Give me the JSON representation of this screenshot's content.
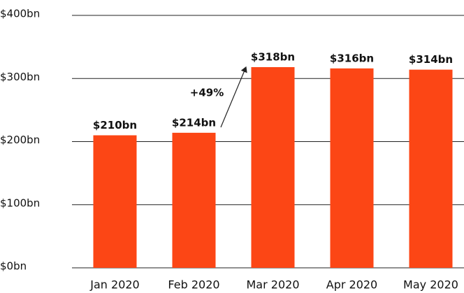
{
  "chart_data": {
    "type": "bar",
    "categories": [
      "Jan 2020",
      "Feb 2020",
      "Mar 2020",
      "Apr 2020",
      "May 2020"
    ],
    "values": [
      210,
      214,
      318,
      316,
      314
    ],
    "value_labels": [
      "$210bn",
      "$214bn",
      "$318bn",
      "$316bn",
      "$314bn"
    ],
    "color": "#fc4615",
    "ylim": [
      0,
      400
    ],
    "yticks": [
      {
        "value": 0,
        "label": "$0bn"
      },
      {
        "value": 100,
        "label": "$100bn"
      },
      {
        "value": 200,
        "label": "$200bn"
      },
      {
        "value": 300,
        "label": "$300bn"
      },
      {
        "value": 400,
        "label": "$400bn"
      }
    ],
    "grid": true,
    "annotations": [
      "+49%"
    ]
  }
}
